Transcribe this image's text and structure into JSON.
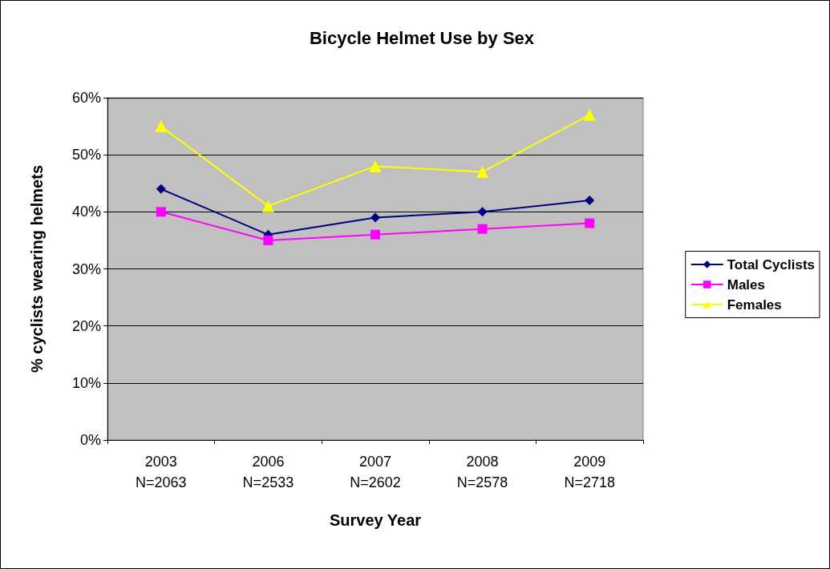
{
  "chart_data": {
    "type": "line",
    "title": "Bicycle Helmet Use by Sex",
    "xlabel": "Survey Year",
    "ylabel": "% cyclists wearing helmets",
    "categories": [
      "2003\nN=2063",
      "2006\nN=2533",
      "2007\nN=2602",
      "2008\nN=2578",
      "2009\nN=2718"
    ],
    "series": [
      {
        "name": "Total Cyclists",
        "color": "#000080",
        "marker": "diamond",
        "values": [
          44,
          36,
          39,
          40,
          42
        ]
      },
      {
        "name": "Males",
        "color": "#ff00ff",
        "marker": "square",
        "values": [
          40,
          35,
          36,
          37,
          38
        ]
      },
      {
        "name": "Females",
        "color": "#ffff00",
        "marker": "triangle",
        "values": [
          55,
          41,
          48,
          47,
          57
        ]
      }
    ],
    "ylim": [
      0,
      60
    ],
    "yticks": [
      {
        "value": 0,
        "label": "0%"
      },
      {
        "value": 10,
        "label": "10%"
      },
      {
        "value": 20,
        "label": "20%"
      },
      {
        "value": 30,
        "label": "30%"
      },
      {
        "value": 40,
        "label": "40%"
      },
      {
        "value": 50,
        "label": "50%"
      },
      {
        "value": 60,
        "label": "60%"
      }
    ],
    "grid": "y",
    "legend": "right",
    "line_style": "solid"
  }
}
